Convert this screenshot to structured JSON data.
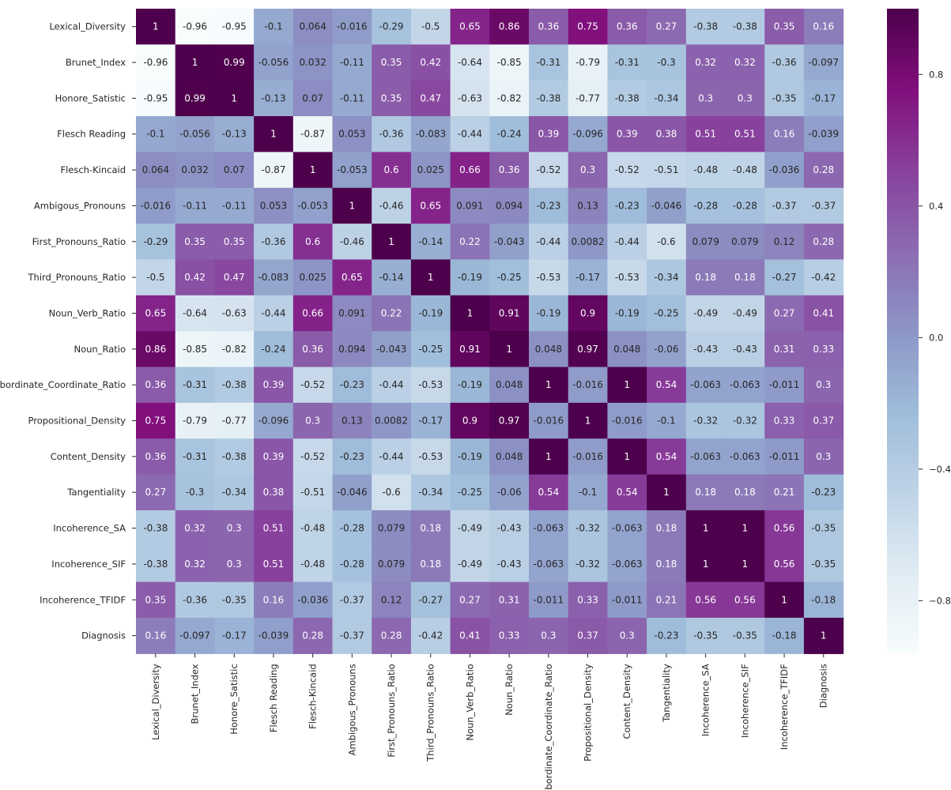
{
  "chart_data": {
    "type": "heatmap",
    "title": "",
    "xlabel": "",
    "ylabel": "",
    "labels": [
      "Lexical_Diversity",
      "Brunet_Index",
      "Honore_Satistic",
      "Flesch Reading",
      "Flesch-Kincaid",
      "Ambigous_Pronouns",
      "First_Pronouns_Ratio",
      "Third_Pronouns_Ratio",
      "Noun_Verb_Ratio",
      "Noun_Ratio",
      "Subordinate_Coordinate_Ratio",
      "Propositional_Density",
      "Content_Density",
      "Tangentiality",
      "Incoherence_SA",
      "Incoherence_SIF",
      "Incoherence_TFIDF",
      "Diagnosis"
    ],
    "cell_text": [
      [
        "1",
        "-0.96",
        "-0.95",
        "-0.1",
        "0.064",
        "-0.016",
        "-0.29",
        "-0.5",
        "0.65",
        "0.86",
        "0.36",
        "0.75",
        "0.36",
        "0.27",
        "-0.38",
        "-0.38",
        "0.35",
        "0.16"
      ],
      [
        "-0.96",
        "1",
        "0.99",
        "-0.056",
        "0.032",
        "-0.11",
        "0.35",
        "0.42",
        "-0.64",
        "-0.85",
        "-0.31",
        "-0.79",
        "-0.31",
        "-0.3",
        "0.32",
        "0.32",
        "-0.36",
        "-0.097"
      ],
      [
        "-0.95",
        "0.99",
        "1",
        "-0.13",
        "0.07",
        "-0.11",
        "0.35",
        "0.47",
        "-0.63",
        "-0.82",
        "-0.38",
        "-0.77",
        "-0.38",
        "-0.34",
        "0.3",
        "0.3",
        "-0.35",
        "-0.17"
      ],
      [
        "-0.1",
        "-0.056",
        "-0.13",
        "1",
        "-0.87",
        "0.053",
        "-0.36",
        "-0.083",
        "-0.44",
        "-0.24",
        "0.39",
        "-0.096",
        "0.39",
        "0.38",
        "0.51",
        "0.51",
        "0.16",
        "-0.039"
      ],
      [
        "0.064",
        "0.032",
        "0.07",
        "-0.87",
        "1",
        "-0.053",
        "0.6",
        "0.025",
        "0.66",
        "0.36",
        "-0.52",
        "0.3",
        "-0.52",
        "-0.51",
        "-0.48",
        "-0.48",
        "-0.036",
        "0.28"
      ],
      [
        "-0.016",
        "-0.11",
        "-0.11",
        "0.053",
        "-0.053",
        "1",
        "-0.46",
        "0.65",
        "0.091",
        "0.094",
        "-0.23",
        "0.13",
        "-0.23",
        "-0.046",
        "-0.28",
        "-0.28",
        "-0.37",
        "-0.37"
      ],
      [
        "-0.29",
        "0.35",
        "0.35",
        "-0.36",
        "0.6",
        "-0.46",
        "1",
        "-0.14",
        "0.22",
        "-0.043",
        "-0.44",
        "0.0082",
        "-0.44",
        "-0.6",
        "0.079",
        "0.079",
        "0.12",
        "0.28"
      ],
      [
        "-0.5",
        "0.42",
        "0.47",
        "-0.083",
        "0.025",
        "0.65",
        "-0.14",
        "1",
        "-0.19",
        "-0.25",
        "-0.53",
        "-0.17",
        "-0.53",
        "-0.34",
        "0.18",
        "0.18",
        "-0.27",
        "-0.42"
      ],
      [
        "0.65",
        "-0.64",
        "-0.63",
        "-0.44",
        "0.66",
        "0.091",
        "0.22",
        "-0.19",
        "1",
        "0.91",
        "-0.19",
        "0.9",
        "-0.19",
        "-0.25",
        "-0.49",
        "-0.49",
        "0.27",
        "0.41"
      ],
      [
        "0.86",
        "-0.85",
        "-0.82",
        "-0.24",
        "0.36",
        "0.094",
        "-0.043",
        "-0.25",
        "0.91",
        "1",
        "0.048",
        "0.97",
        "0.048",
        "-0.06",
        "-0.43",
        "-0.43",
        "0.31",
        "0.33"
      ],
      [
        "0.36",
        "-0.31",
        "-0.38",
        "0.39",
        "-0.52",
        "-0.23",
        "-0.44",
        "-0.53",
        "-0.19",
        "0.048",
        "1",
        "-0.016",
        "1",
        "0.54",
        "-0.063",
        "-0.063",
        "-0.011",
        "0.3"
      ],
      [
        "0.75",
        "-0.79",
        "-0.77",
        "-0.096",
        "0.3",
        "0.13",
        "0.0082",
        "-0.17",
        "0.9",
        "0.97",
        "-0.016",
        "1",
        "-0.016",
        "-0.1",
        "-0.32",
        "-0.32",
        "0.33",
        "0.37"
      ],
      [
        "0.36",
        "-0.31",
        "-0.38",
        "0.39",
        "-0.52",
        "-0.23",
        "-0.44",
        "-0.53",
        "-0.19",
        "0.048",
        "1",
        "-0.016",
        "1",
        "0.54",
        "-0.063",
        "-0.063",
        "-0.011",
        "0.3"
      ],
      [
        "0.27",
        "-0.3",
        "-0.34",
        "0.38",
        "-0.51",
        "-0.046",
        "-0.6",
        "-0.34",
        "-0.25",
        "-0.06",
        "0.54",
        "-0.1",
        "0.54",
        "1",
        "0.18",
        "0.18",
        "0.21",
        "-0.23"
      ],
      [
        "-0.38",
        "0.32",
        "0.3",
        "0.51",
        "-0.48",
        "-0.28",
        "0.079",
        "0.18",
        "-0.49",
        "-0.43",
        "-0.063",
        "-0.32",
        "-0.063",
        "0.18",
        "1",
        "1",
        "0.56",
        "-0.35"
      ],
      [
        "-0.38",
        "0.32",
        "0.3",
        "0.51",
        "-0.48",
        "-0.28",
        "0.079",
        "0.18",
        "-0.49",
        "-0.43",
        "-0.063",
        "-0.32",
        "-0.063",
        "0.18",
        "1",
        "1",
        "0.56",
        "-0.35"
      ],
      [
        "0.35",
        "-0.36",
        "-0.35",
        "0.16",
        "-0.036",
        "-0.37",
        "0.12",
        "-0.27",
        "0.27",
        "0.31",
        "-0.011",
        "0.33",
        "-0.011",
        "0.21",
        "0.56",
        "0.56",
        "1",
        "-0.18"
      ],
      [
        "0.16",
        "-0.097",
        "-0.17",
        "-0.039",
        "0.28",
        "-0.37",
        "0.28",
        "-0.42",
        "0.41",
        "0.33",
        "0.3",
        "0.37",
        "0.3",
        "-0.23",
        "-0.35",
        "-0.35",
        "-0.18",
        "1"
      ]
    ],
    "colorscale": {
      "name": "BuPu",
      "vmin": -0.96,
      "vmax": 1.0,
      "ticks": [
        -0.8,
        -0.4,
        0.0,
        0.4,
        0.8
      ],
      "tick_labels": [
        "−0.8",
        "−0.4",
        "0.0",
        "0.4",
        "0.8"
      ],
      "stops": [
        "#f7fcfd",
        "#e0ecf4",
        "#bfd3e6",
        "#9ebcda",
        "#8c96c6",
        "#8c6bb1",
        "#88419d",
        "#810f7c",
        "#4d004b"
      ]
    },
    "legend": "right",
    "grid": false
  }
}
